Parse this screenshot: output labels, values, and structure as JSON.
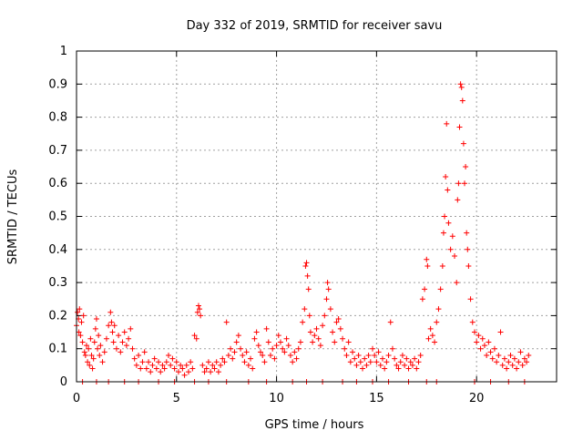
{
  "chart_data": {
    "type": "scatter",
    "title": "Day 332 of 2019, SRMTID for receiver savu",
    "xlabel": "GPS time / hours",
    "ylabel": "SRMTID / TECUs",
    "xlim": [
      0,
      24
    ],
    "ylim": [
      0,
      1
    ],
    "xticks": [
      0,
      5,
      10,
      15,
      20
    ],
    "xtick_labels": [
      "0",
      "5",
      "10",
      "15",
      "20"
    ],
    "yticks": [
      0,
      0.1,
      0.2,
      0.3,
      0.4,
      0.5,
      0.6,
      0.7,
      0.8,
      0.9,
      1
    ],
    "ytick_labels": [
      "0",
      "0.1",
      "0.2",
      "0.3",
      "0.4",
      "0.5",
      "0.6",
      "0.7",
      "0.8",
      "0.9",
      "1"
    ],
    "grid": true,
    "marker": "+",
    "color": "#ff0000",
    "series": [
      {
        "name": "SRMTID",
        "points": [
          [
            0.0,
            0.17
          ],
          [
            0.05,
            0.21
          ],
          [
            0.1,
            0.19
          ],
          [
            0.12,
            0.15
          ],
          [
            0.15,
            0.22
          ],
          [
            0.2,
            0.14
          ],
          [
            0.25,
            0.18
          ],
          [
            0.3,
            0.12
          ],
          [
            0.35,
            0.2
          ],
          [
            0.4,
            0.09
          ],
          [
            0.45,
            0.08
          ],
          [
            0.5,
            0.11
          ],
          [
            0.55,
            0.06
          ],
          [
            0.6,
            0.1
          ],
          [
            0.65,
            0.05
          ],
          [
            0.7,
            0.13
          ],
          [
            0.75,
            0.08
          ],
          [
            0.8,
            0.04
          ],
          [
            0.85,
            0.07
          ],
          [
            0.9,
            0.12
          ],
          [
            0.95,
            0.16
          ],
          [
            1.0,
            0.19
          ],
          [
            1.05,
            0.1
          ],
          [
            1.1,
            0.14
          ],
          [
            1.15,
            0.08
          ],
          [
            1.2,
            0.11
          ],
          [
            1.3,
            0.06
          ],
          [
            1.4,
            0.09
          ],
          [
            1.5,
            0.13
          ],
          [
            1.6,
            0.17
          ],
          [
            1.7,
            0.21
          ],
          [
            1.75,
            0.18
          ],
          [
            1.8,
            0.15
          ],
          [
            1.85,
            0.12
          ],
          [
            1.9,
            0.17
          ],
          [
            2.0,
            0.1
          ],
          [
            2.1,
            0.14
          ],
          [
            2.2,
            0.09
          ],
          [
            2.3,
            0.12
          ],
          [
            2.4,
            0.15
          ],
          [
            2.5,
            0.11
          ],
          [
            2.6,
            0.13
          ],
          [
            2.7,
            0.16
          ],
          [
            2.8,
            0.1
          ],
          [
            2.9,
            0.07
          ],
          [
            3.0,
            0.05
          ],
          [
            3.1,
            0.08
          ],
          [
            3.2,
            0.04
          ],
          [
            3.3,
            0.06
          ],
          [
            3.4,
            0.09
          ],
          [
            3.5,
            0.04
          ],
          [
            3.6,
            0.06
          ],
          [
            3.7,
            0.03
          ],
          [
            3.8,
            0.05
          ],
          [
            3.9,
            0.07
          ],
          [
            4.0,
            0.04
          ],
          [
            4.1,
            0.06
          ],
          [
            4.2,
            0.03
          ],
          [
            4.3,
            0.05
          ],
          [
            4.4,
            0.04
          ],
          [
            4.5,
            0.06
          ],
          [
            4.6,
            0.08
          ],
          [
            4.7,
            0.05
          ],
          [
            4.8,
            0.07
          ],
          [
            4.9,
            0.04
          ],
          [
            5.0,
            0.06
          ],
          [
            5.1,
            0.03
          ],
          [
            5.2,
            0.05
          ],
          [
            5.3,
            0.04
          ],
          [
            5.4,
            0.02
          ],
          [
            5.5,
            0.05
          ],
          [
            5.6,
            0.03
          ],
          [
            5.7,
            0.06
          ],
          [
            5.8,
            0.04
          ],
          [
            5.9,
            0.14
          ],
          [
            6.0,
            0.13
          ],
          [
            6.05,
            0.21
          ],
          [
            6.1,
            0.23
          ],
          [
            6.15,
            0.22
          ],
          [
            6.2,
            0.2
          ],
          [
            6.3,
            0.05
          ],
          [
            6.4,
            0.03
          ],
          [
            6.5,
            0.04
          ],
          [
            6.6,
            0.06
          ],
          [
            6.7,
            0.03
          ],
          [
            6.8,
            0.05
          ],
          [
            6.9,
            0.04
          ],
          [
            7.0,
            0.06
          ],
          [
            7.1,
            0.03
          ],
          [
            7.2,
            0.05
          ],
          [
            7.3,
            0.07
          ],
          [
            7.4,
            0.06
          ],
          [
            7.5,
            0.18
          ],
          [
            7.6,
            0.08
          ],
          [
            7.7,
            0.1
          ],
          [
            7.8,
            0.07
          ],
          [
            7.9,
            0.09
          ],
          [
            8.0,
            0.12
          ],
          [
            8.1,
            0.14
          ],
          [
            8.2,
            0.1
          ],
          [
            8.3,
            0.08
          ],
          [
            8.4,
            0.06
          ],
          [
            8.5,
            0.09
          ],
          [
            8.6,
            0.05
          ],
          [
            8.7,
            0.07
          ],
          [
            8.8,
            0.04
          ],
          [
            8.9,
            0.13
          ],
          [
            9.0,
            0.15
          ],
          [
            9.1,
            0.11
          ],
          [
            9.2,
            0.09
          ],
          [
            9.3,
            0.08
          ],
          [
            9.4,
            0.06
          ],
          [
            9.5,
            0.16
          ],
          [
            9.6,
            0.12
          ],
          [
            9.7,
            0.08
          ],
          [
            9.8,
            0.1
          ],
          [
            9.9,
            0.07
          ],
          [
            10.0,
            0.11
          ],
          [
            10.1,
            0.14
          ],
          [
            10.2,
            0.12
          ],
          [
            10.3,
            0.1
          ],
          [
            10.4,
            0.09
          ],
          [
            10.5,
            0.13
          ],
          [
            10.6,
            0.11
          ],
          [
            10.7,
            0.08
          ],
          [
            10.8,
            0.06
          ],
          [
            10.9,
            0.09
          ],
          [
            11.0,
            0.07
          ],
          [
            11.1,
            0.1
          ],
          [
            11.2,
            0.12
          ],
          [
            11.3,
            0.18
          ],
          [
            11.4,
            0.22
          ],
          [
            11.45,
            0.35
          ],
          [
            11.5,
            0.36
          ],
          [
            11.55,
            0.32
          ],
          [
            11.6,
            0.28
          ],
          [
            11.65,
            0.2
          ],
          [
            11.7,
            0.15
          ],
          [
            11.8,
            0.12
          ],
          [
            11.9,
            0.14
          ],
          [
            12.0,
            0.16
          ],
          [
            12.1,
            0.13
          ],
          [
            12.2,
            0.11
          ],
          [
            12.3,
            0.17
          ],
          [
            12.4,
            0.2
          ],
          [
            12.5,
            0.25
          ],
          [
            12.55,
            0.3
          ],
          [
            12.6,
            0.28
          ],
          [
            12.7,
            0.22
          ],
          [
            12.8,
            0.15
          ],
          [
            12.9,
            0.12
          ],
          [
            13.0,
            0.18
          ],
          [
            13.1,
            0.19
          ],
          [
            13.2,
            0.16
          ],
          [
            13.3,
            0.13
          ],
          [
            13.4,
            0.1
          ],
          [
            13.5,
            0.08
          ],
          [
            13.6,
            0.12
          ],
          [
            13.7,
            0.06
          ],
          [
            13.8,
            0.09
          ],
          [
            13.9,
            0.07
          ],
          [
            14.0,
            0.05
          ],
          [
            14.1,
            0.08
          ],
          [
            14.2,
            0.06
          ],
          [
            14.3,
            0.04
          ],
          [
            14.4,
            0.07
          ],
          [
            14.5,
            0.05
          ],
          [
            14.6,
            0.08
          ],
          [
            14.7,
            0.06
          ],
          [
            14.8,
            0.1
          ],
          [
            14.9,
            0.08
          ],
          [
            15.0,
            0.06
          ],
          [
            15.1,
            0.09
          ],
          [
            15.2,
            0.05
          ],
          [
            15.3,
            0.07
          ],
          [
            15.4,
            0.04
          ],
          [
            15.5,
            0.06
          ],
          [
            15.6,
            0.08
          ],
          [
            15.7,
            0.18
          ],
          [
            15.8,
            0.1
          ],
          [
            15.9,
            0.07
          ],
          [
            16.0,
            0.05
          ],
          [
            16.1,
            0.04
          ],
          [
            16.2,
            0.06
          ],
          [
            16.3,
            0.08
          ],
          [
            16.4,
            0.05
          ],
          [
            16.5,
            0.07
          ],
          [
            16.6,
            0.04
          ],
          [
            16.7,
            0.06
          ],
          [
            16.8,
            0.05
          ],
          [
            16.9,
            0.07
          ],
          [
            17.0,
            0.04
          ],
          [
            17.1,
            0.06
          ],
          [
            17.2,
            0.08
          ],
          [
            17.3,
            0.25
          ],
          [
            17.4,
            0.28
          ],
          [
            17.5,
            0.37
          ],
          [
            17.55,
            0.35
          ],
          [
            17.6,
            0.13
          ],
          [
            17.7,
            0.16
          ],
          [
            17.8,
            0.14
          ],
          [
            17.9,
            0.12
          ],
          [
            18.0,
            0.18
          ],
          [
            18.1,
            0.22
          ],
          [
            18.2,
            0.28
          ],
          [
            18.3,
            0.35
          ],
          [
            18.35,
            0.45
          ],
          [
            18.4,
            0.5
          ],
          [
            18.45,
            0.62
          ],
          [
            18.5,
            0.78
          ],
          [
            18.55,
            0.58
          ],
          [
            18.6,
            0.48
          ],
          [
            18.7,
            0.4
          ],
          [
            18.8,
            0.44
          ],
          [
            18.9,
            0.38
          ],
          [
            19.0,
            0.3
          ],
          [
            19.05,
            0.55
          ],
          [
            19.1,
            0.6
          ],
          [
            19.15,
            0.77
          ],
          [
            19.2,
            0.9
          ],
          [
            19.25,
            0.89
          ],
          [
            19.3,
            0.85
          ],
          [
            19.35,
            0.72
          ],
          [
            19.4,
            0.6
          ],
          [
            19.45,
            0.65
          ],
          [
            19.5,
            0.45
          ],
          [
            19.55,
            0.4
          ],
          [
            19.6,
            0.35
          ],
          [
            19.7,
            0.25
          ],
          [
            19.8,
            0.18
          ],
          [
            19.9,
            0.15
          ],
          [
            20.0,
            0.12
          ],
          [
            20.1,
            0.14
          ],
          [
            20.2,
            0.1
          ],
          [
            20.3,
            0.13
          ],
          [
            20.4,
            0.11
          ],
          [
            20.5,
            0.08
          ],
          [
            20.6,
            0.12
          ],
          [
            20.7,
            0.09
          ],
          [
            20.8,
            0.07
          ],
          [
            20.9,
            0.1
          ],
          [
            21.0,
            0.06
          ],
          [
            21.1,
            0.08
          ],
          [
            21.2,
            0.15
          ],
          [
            21.3,
            0.05
          ],
          [
            21.4,
            0.07
          ],
          [
            21.5,
            0.04
          ],
          [
            21.6,
            0.06
          ],
          [
            21.7,
            0.08
          ],
          [
            21.8,
            0.05
          ],
          [
            21.9,
            0.07
          ],
          [
            22.0,
            0.04
          ],
          [
            22.1,
            0.06
          ],
          [
            22.2,
            0.09
          ],
          [
            22.3,
            0.05
          ],
          [
            22.4,
            0.07
          ],
          [
            22.5,
            0.06
          ],
          [
            22.6,
            0.08
          ],
          [
            0.3,
            0.0
          ],
          [
            1.0,
            0.0
          ],
          [
            1.6,
            0.0
          ],
          [
            2.4,
            0.0
          ],
          [
            3.1,
            0.0
          ],
          [
            4.1,
            0.0
          ],
          [
            4.9,
            0.0
          ],
          [
            5.9,
            0.0
          ],
          [
            6.6,
            0.0
          ],
          [
            7.5,
            0.0
          ],
          [
            8.6,
            0.0
          ],
          [
            9.5,
            0.0
          ],
          [
            10.8,
            0.0
          ],
          [
            11.5,
            0.0
          ],
          [
            12.3,
            0.0
          ],
          [
            13.3,
            0.0
          ],
          [
            14.0,
            0.0
          ],
          [
            14.8,
            0.0
          ],
          [
            15.6,
            0.0
          ],
          [
            16.6,
            0.0
          ],
          [
            17.5,
            0.0
          ],
          [
            18.0,
            0.0
          ],
          [
            19.9,
            0.0
          ],
          [
            20.7,
            0.0
          ],
          [
            21.6,
            0.0
          ],
          [
            22.4,
            0.0
          ]
        ]
      }
    ]
  }
}
